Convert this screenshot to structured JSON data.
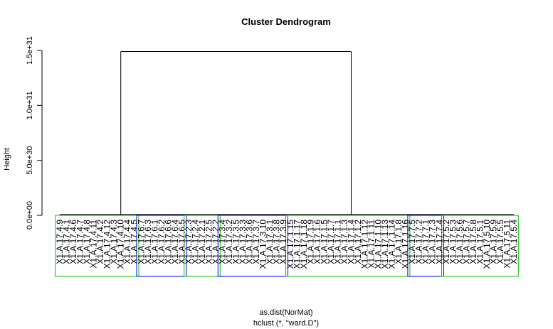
{
  "chart_data": {
    "type": "dendrogram",
    "title": "Cluster Dendrogram",
    "ylabel": "Height",
    "xlabel": "as.dist(NorMat)",
    "sublabel": "hclust (*, \"ward.D\")",
    "ylim": [
      0,
      1.5e+31
    ],
    "yticks": [
      {
        "value": 0,
        "label": "0.0e+00"
      },
      {
        "value": 5e+30,
        "label": "5.0e+30"
      },
      {
        "value": 1e+31,
        "label": "1.0e+31"
      },
      {
        "value": 1.5e+31,
        "label": "1.5e+31"
      }
    ],
    "top_merge_height": 1.49e+31,
    "leaf_labels": [
      "X1.A.17.4.9",
      "X1.A.17.4.1",
      "X1.A.17.4.6",
      "X1.A.17.4.7",
      "X1.A.17.4.8",
      "X1.A.17.4.11",
      "X1.A.17.4.2",
      "X1.A.17.4.12",
      "X1.A.17.4.3",
      "X1.A.17.4.10",
      "X1.A.17.4.4",
      "X1.A.17.4.5",
      "X1.A.17.6.7",
      "X1.A.17.6.3",
      "X1.A.17.6.1",
      "X1.A.17.6.2",
      "X1.A.17.6.6",
      "X1.A.17.6.4",
      "X1.A.17.6.5",
      "X1.A.17.2.3",
      "X1.A.17.2.4",
      "X1.A.17.2.1",
      "X1.A.17.2.5",
      "X1.A.17.2.2",
      "X1.A.17.3.4",
      "X1.A.17.3.2",
      "X1.A.17.3.5",
      "X1.A.17.3.3",
      "X1.A.17.3.6",
      "X1.A.17.3.7",
      "X1.A.17.3.10",
      "X1.A.17.3.1",
      "X1.A.17.3.8",
      "X1.A.17.3.9",
      "X1.A.17.1.15",
      "X1.A.17.1.17",
      "X1.A.17.1.18",
      "X1.A.17.1.9",
      "X1.A.17.1.6",
      "X1.A.17.1.5",
      "X1.A.17.1.7",
      "X1.A.17.1.1",
      "X1.A.17.1.3",
      "X1.A.17.1.4",
      "X1.A.17.1.2",
      "X1.A.17.1.12",
      "X1.A.17.1.11",
      "X1.A.17.1.10",
      "X1.A.17.1.13",
      "X1.A.17.1.14",
      "X1.A.17.1.8",
      "X1.A.17.1.16",
      "X1.A.17.7.5",
      "X1.A.17.7.2",
      "X1.A.17.7.1",
      "X1.A.17.7.3",
      "X1.A.17.7.4",
      "X1.A.17.5.2",
      "X1.A.17.5.3",
      "X1.A.17.5.6",
      "X1.A.17.5.7",
      "X1.A.17.5.8",
      "X1.A.17.5.1",
      "X1.A.17.5.10",
      "X1.A.17.5.9",
      "X1.A.17.5.5",
      "X1.A.17.5.11",
      "X1.A.17.5.4"
    ],
    "cluster_boxes": [
      {
        "first_leaf": 0,
        "last_leaf": 11,
        "color": "#00c000"
      },
      {
        "first_leaf": 12,
        "last_leaf": 18,
        "color": "#0000ff"
      },
      {
        "first_leaf": 19,
        "last_leaf": 23,
        "color": "#00c000"
      },
      {
        "first_leaf": 24,
        "last_leaf": 33,
        "color": "#0000ff"
      },
      {
        "first_leaf": 34,
        "last_leaf": 51,
        "color": "#00c000"
      },
      {
        "first_leaf": 52,
        "last_leaf": 56,
        "color": "#0000ff"
      },
      {
        "first_leaf": 57,
        "last_leaf": 67,
        "color": "#00c000"
      }
    ],
    "top_split_after_leaf": 18,
    "line_color": "#000000"
  }
}
